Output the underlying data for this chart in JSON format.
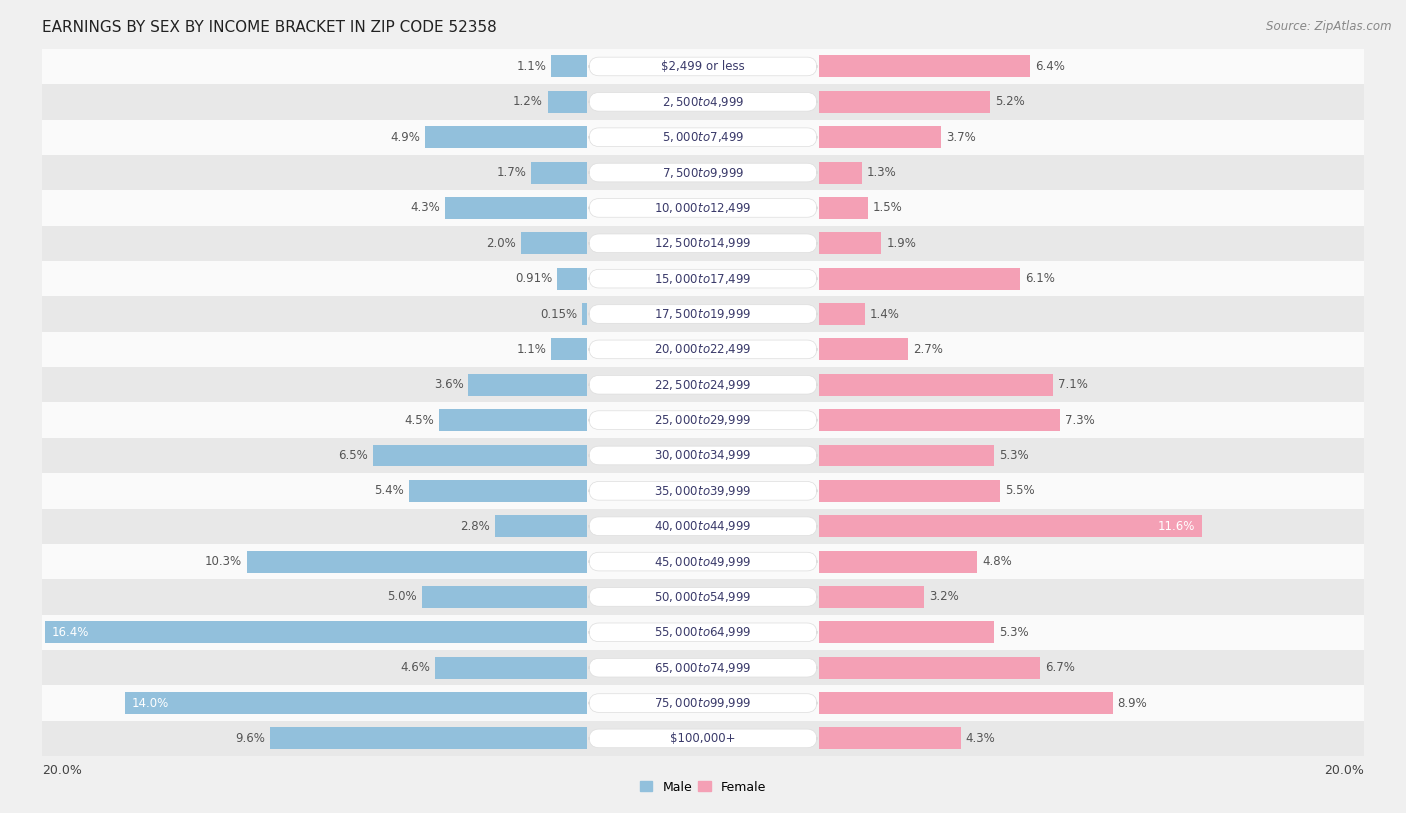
{
  "title": "EARNINGS BY SEX BY INCOME BRACKET IN ZIP CODE 52358",
  "source": "Source: ZipAtlas.com",
  "categories": [
    "$2,499 or less",
    "$2,500 to $4,999",
    "$5,000 to $7,499",
    "$7,500 to $9,999",
    "$10,000 to $12,499",
    "$12,500 to $14,999",
    "$15,000 to $17,499",
    "$17,500 to $19,999",
    "$20,000 to $22,499",
    "$22,500 to $24,999",
    "$25,000 to $29,999",
    "$30,000 to $34,999",
    "$35,000 to $39,999",
    "$40,000 to $44,999",
    "$45,000 to $49,999",
    "$50,000 to $54,999",
    "$55,000 to $64,999",
    "$65,000 to $74,999",
    "$75,000 to $99,999",
    "$100,000+"
  ],
  "male": [
    1.1,
    1.2,
    4.9,
    1.7,
    4.3,
    2.0,
    0.91,
    0.15,
    1.1,
    3.6,
    4.5,
    6.5,
    5.4,
    2.8,
    10.3,
    5.0,
    16.4,
    4.6,
    14.0,
    9.6
  ],
  "female": [
    6.4,
    5.2,
    3.7,
    1.3,
    1.5,
    1.9,
    6.1,
    1.4,
    2.7,
    7.1,
    7.3,
    5.3,
    5.5,
    11.6,
    4.8,
    3.2,
    5.3,
    6.7,
    8.9,
    4.3
  ],
  "male_color": "#92c0dc",
  "female_color": "#f4a0b5",
  "male_label_color": "#555555",
  "female_label_color": "#555555",
  "male_text_highlight": [
    16,
    18
  ],
  "female_text_highlight": [
    13
  ],
  "highlight_text_color": "#ffffff",
  "bar_height": 0.62,
  "xlim": 20.0,
  "title_fontsize": 11,
  "source_fontsize": 8.5,
  "label_fontsize": 9,
  "category_fontsize": 8.5,
  "value_fontsize": 8.5,
  "legend_fontsize": 9,
  "bg_color": "#f0f0f0",
  "row_light_color": "#fafafa",
  "row_dark_color": "#e8e8e8",
  "pill_color": "#ffffff",
  "pill_border_color": "#dddddd"
}
